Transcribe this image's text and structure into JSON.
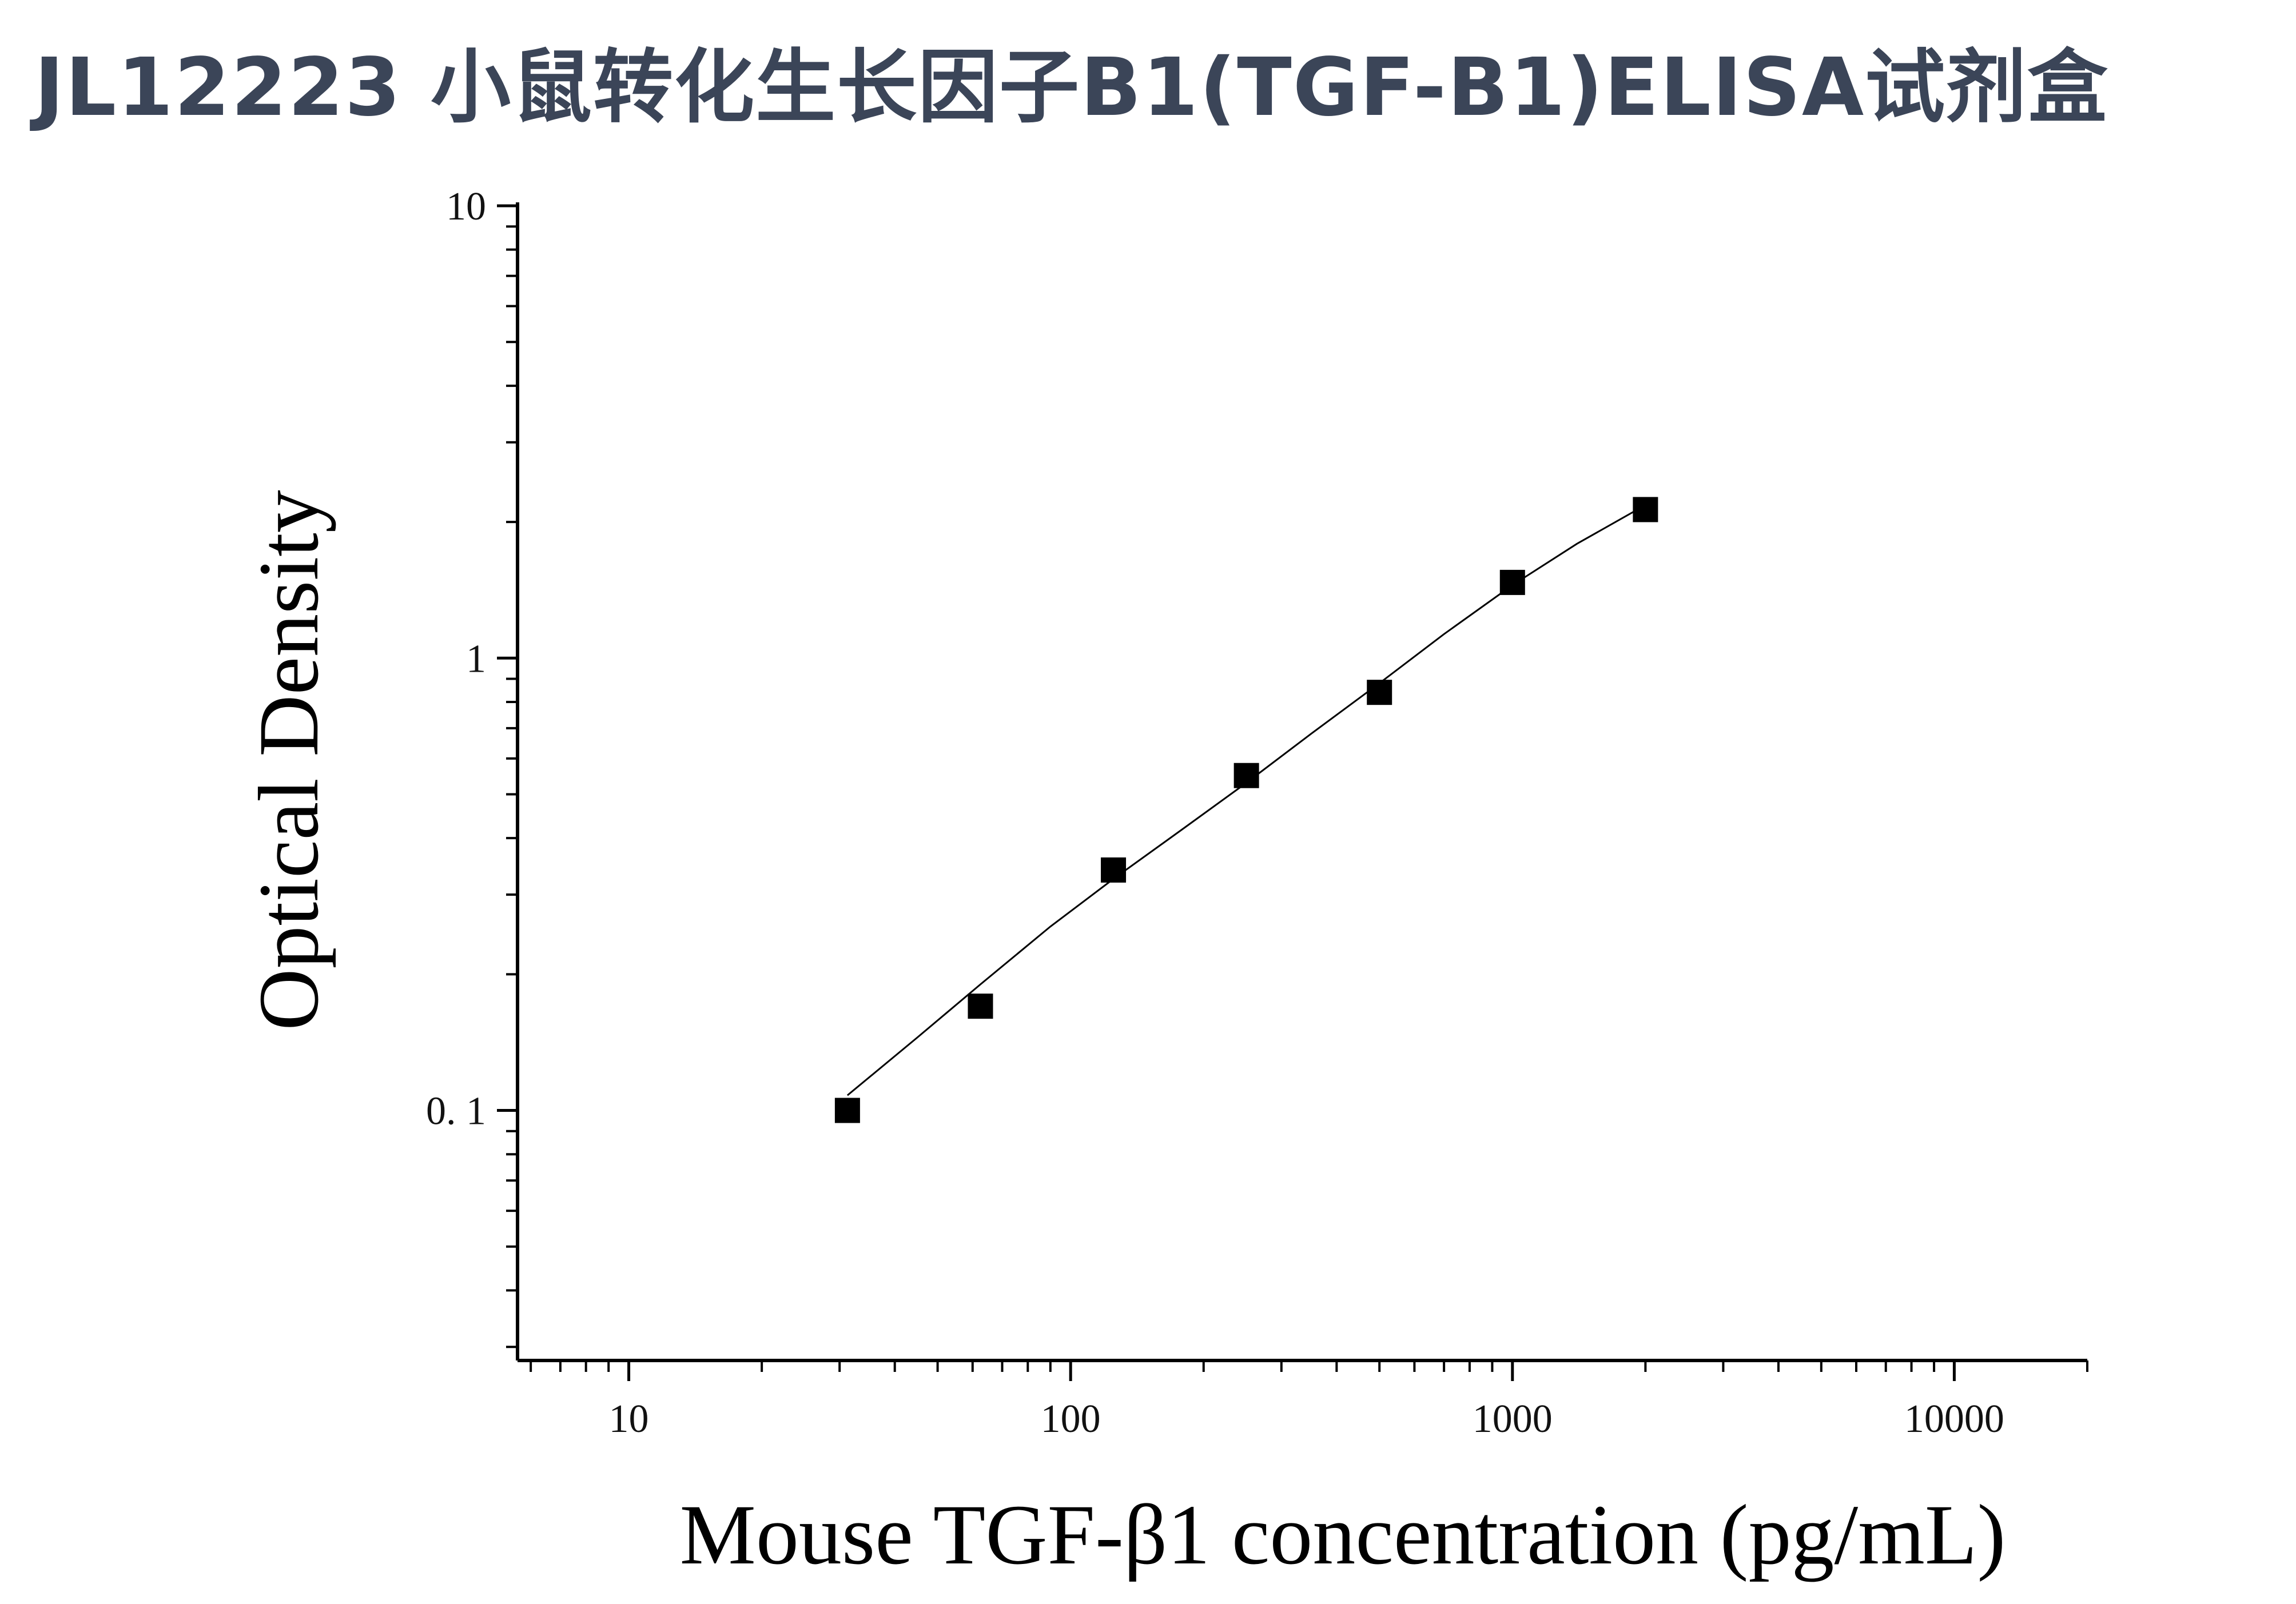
{
  "title": "JL12223 小鼠转化生长因子B1(TGF-B1)ELISA试剂盒",
  "chart_data": {
    "type": "scatter",
    "xlabel": "Mouse TGF-β1 concentration (pg/mL)",
    "ylabel": "Optical Density",
    "x_scale": "log",
    "y_scale": "log",
    "xlim": [
      5.6,
      20000
    ],
    "ylim": [
      0.028,
      10
    ],
    "x_ticks": [
      10,
      100,
      1000,
      10000
    ],
    "x_tick_labels": [
      "10",
      "100",
      "1000",
      "10000"
    ],
    "y_ticks": [
      0.1,
      1,
      10
    ],
    "y_tick_labels": [
      "0. 1",
      "1",
      "10"
    ],
    "grid": false,
    "marker": "square",
    "marker_color": "#000000",
    "series": [
      {
        "x": [
          31.25,
          62.5,
          125,
          250,
          500,
          1000,
          2000
        ],
        "y": [
          0.1,
          0.17,
          0.34,
          0.55,
          0.84,
          1.47,
          2.13
        ]
      }
    ],
    "fit_curve": {
      "x": [
        31.25,
        45,
        62.5,
        90,
        125,
        180,
        250,
        350,
        500,
        700,
        1000,
        1400,
        2000
      ],
      "y": [
        0.108,
        0.145,
        0.19,
        0.255,
        0.325,
        0.42,
        0.53,
        0.68,
        0.88,
        1.13,
        1.45,
        1.79,
        2.18
      ]
    }
  }
}
